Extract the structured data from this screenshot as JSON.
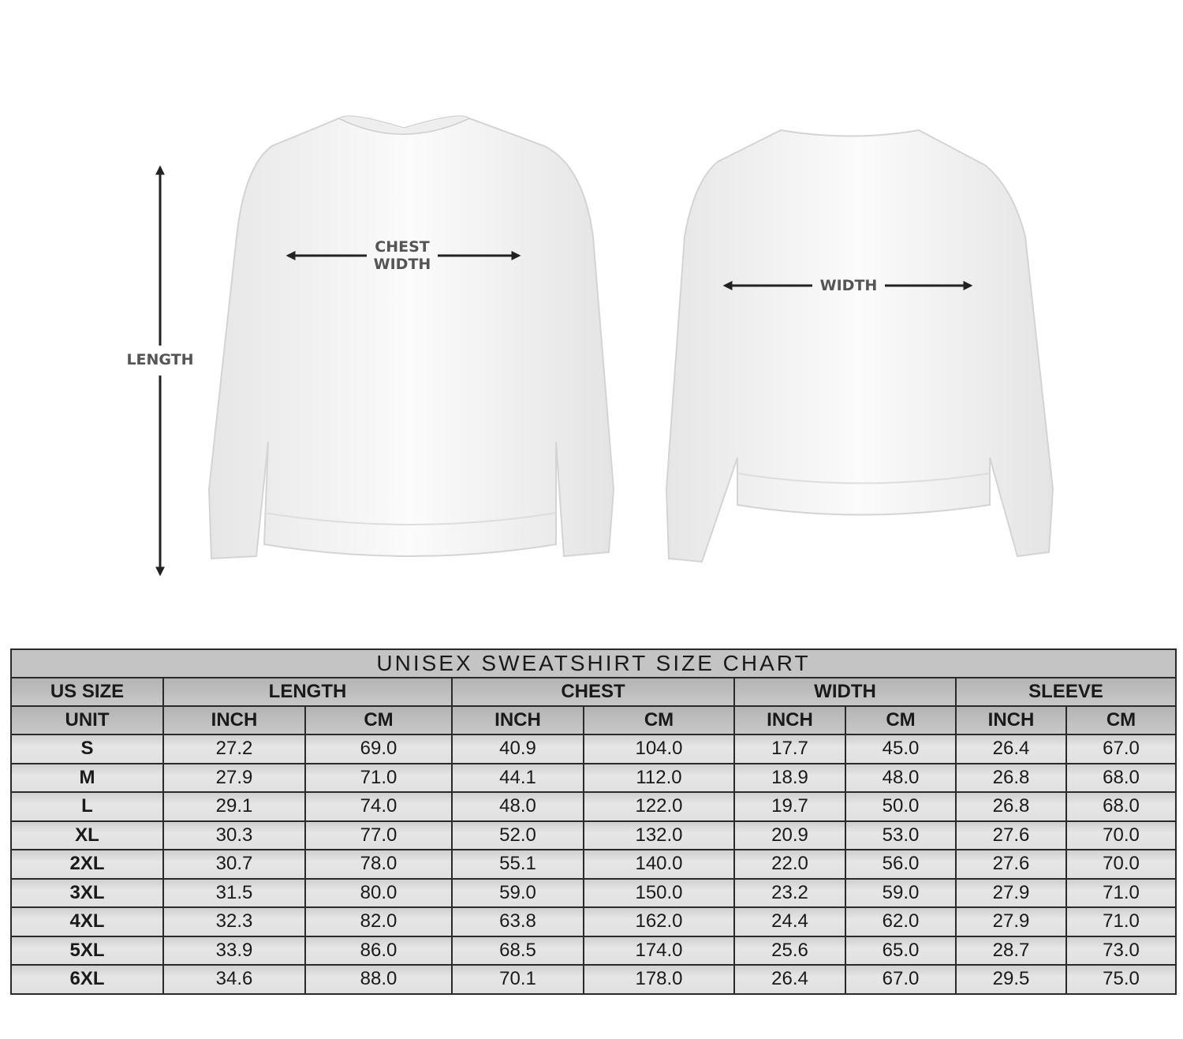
{
  "illustration": {
    "front_labels": {
      "length": "LENGTH",
      "chest_line1": "CHEST",
      "chest_line2": "WIDTH"
    },
    "back_labels": {
      "width": "WIDTH"
    }
  },
  "table": {
    "title": "UNISEX SWEATSHIRT SIZE CHART",
    "group_headers": [
      "US SIZE",
      "LENGTH",
      "CHEST",
      "WIDTH",
      "SLEEVE"
    ],
    "unit_headers": [
      "UNIT",
      "INCH",
      "CM",
      "INCH",
      "CM",
      "INCH",
      "CM",
      "INCH",
      "CM"
    ],
    "rows": [
      [
        "S",
        "27.2",
        "69.0",
        "40.9",
        "104.0",
        "17.7",
        "45.0",
        "26.4",
        "67.0"
      ],
      [
        "M",
        "27.9",
        "71.0",
        "44.1",
        "112.0",
        "18.9",
        "48.0",
        "26.8",
        "68.0"
      ],
      [
        "L",
        "29.1",
        "74.0",
        "48.0",
        "122.0",
        "19.7",
        "50.0",
        "26.8",
        "68.0"
      ],
      [
        "XL",
        "30.3",
        "77.0",
        "52.0",
        "132.0",
        "20.9",
        "53.0",
        "27.6",
        "70.0"
      ],
      [
        "2XL",
        "30.7",
        "78.0",
        "55.1",
        "140.0",
        "22.0",
        "56.0",
        "27.6",
        "70.0"
      ],
      [
        "3XL",
        "31.5",
        "80.0",
        "59.0",
        "150.0",
        "23.2",
        "59.0",
        "27.9",
        "71.0"
      ],
      [
        "4XL",
        "32.3",
        "82.0",
        "63.8",
        "162.0",
        "24.4",
        "62.0",
        "27.9",
        "71.0"
      ],
      [
        "5XL",
        "33.9",
        "86.0",
        "68.5",
        "174.0",
        "25.6",
        "65.0",
        "28.7",
        "73.0"
      ],
      [
        "6XL",
        "34.6",
        "88.0",
        "70.1",
        "178.0",
        "26.4",
        "67.0",
        "29.5",
        "75.0"
      ]
    ]
  }
}
